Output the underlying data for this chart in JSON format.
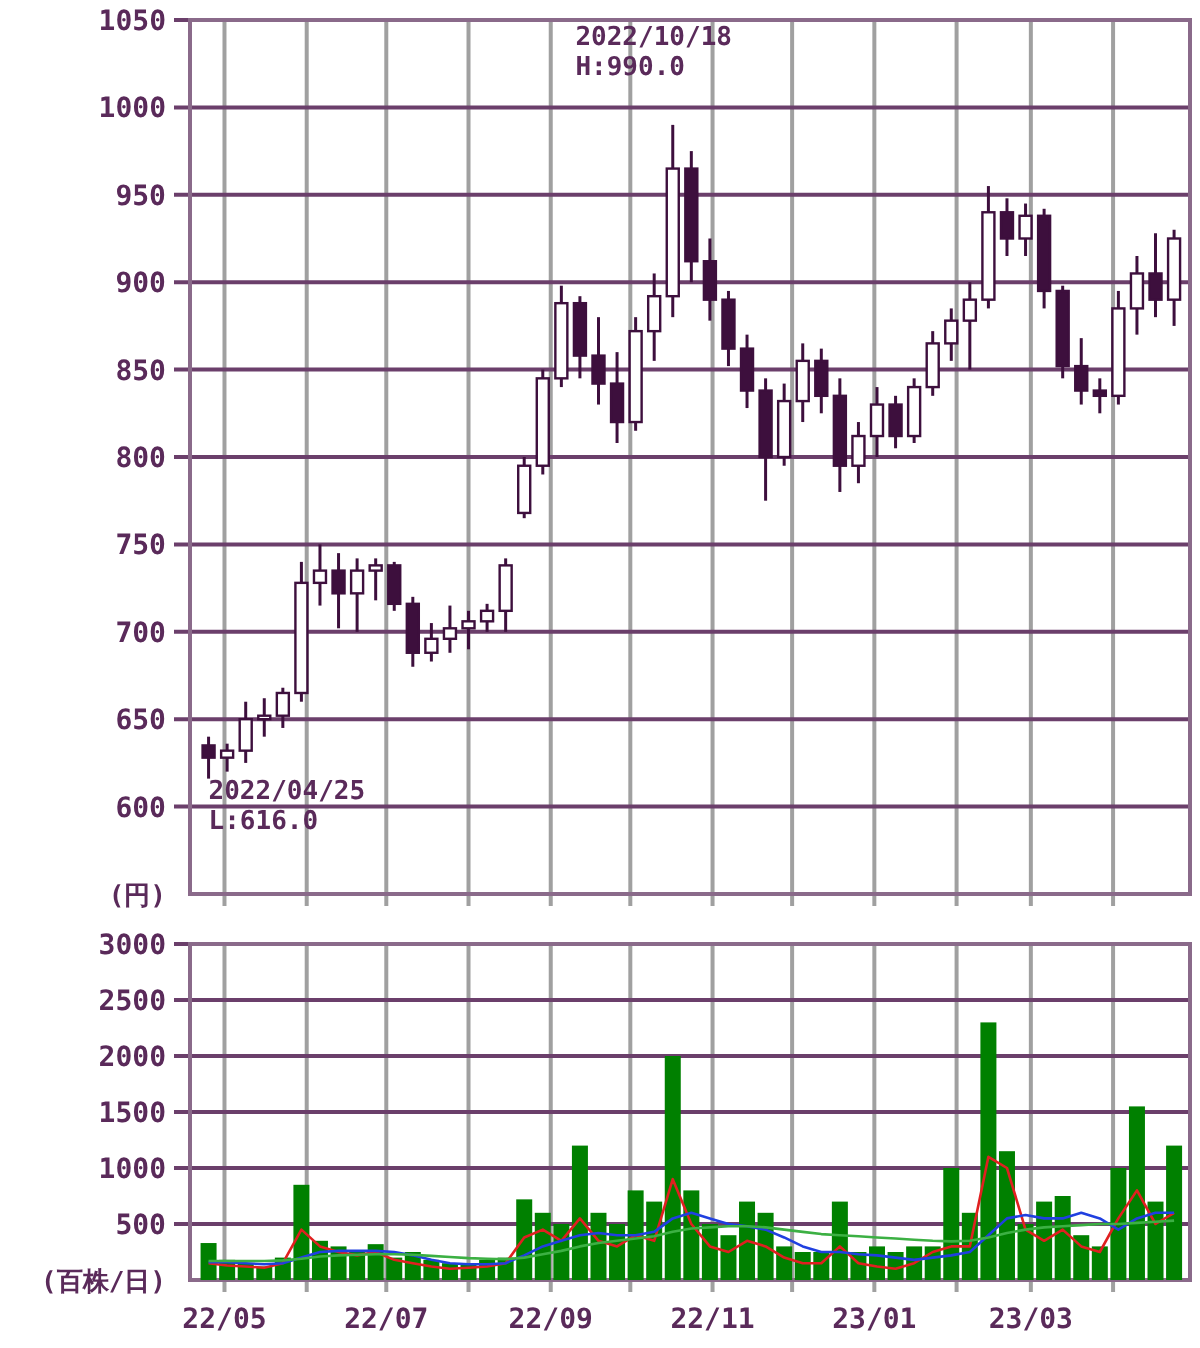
{
  "chart_data": [
    {
      "type": "candlestick",
      "ylabel": "(円)",
      "color": "#3d0f3d",
      "x": [
        "2022-04-25",
        "2022-05-02",
        "2022-05-09",
        "2022-05-16",
        "2022-05-23",
        "2022-05-30",
        "2022-06-06",
        "2022-06-13",
        "2022-06-20",
        "2022-06-27",
        "2022-07-04",
        "2022-07-11",
        "2022-07-18",
        "2022-07-25",
        "2022-08-01",
        "2022-08-08",
        "2022-08-15",
        "2022-08-22",
        "2022-08-29",
        "2022-09-05",
        "2022-09-12",
        "2022-09-19",
        "2022-09-26",
        "2022-10-03",
        "2022-10-10",
        "2022-10-17",
        "2022-10-24",
        "2022-10-31",
        "2022-11-07",
        "2022-11-14",
        "2022-11-21",
        "2022-11-28",
        "2022-12-05",
        "2022-12-12",
        "2022-12-19",
        "2022-12-26",
        "2023-01-02",
        "2023-01-09",
        "2023-01-16",
        "2023-01-23",
        "2023-01-30",
        "2023-02-06",
        "2023-02-13",
        "2023-02-20",
        "2023-02-27",
        "2023-03-06",
        "2023-03-13",
        "2023-03-20",
        "2023-03-27",
        "2023-04-03",
        "2023-04-10",
        "2023-04-17",
        "2023-04-24"
      ],
      "ohlc": [
        [
          635,
          640,
          616,
          628
        ],
        [
          628,
          636,
          620,
          632
        ],
        [
          632,
          660,
          625,
          650
        ],
        [
          650,
          662,
          640,
          652
        ],
        [
          652,
          668,
          645,
          665
        ],
        [
          665,
          740,
          660,
          728
        ],
        [
          728,
          750,
          715,
          735
        ],
        [
          735,
          745,
          702,
          722
        ],
        [
          722,
          742,
          700,
          735
        ],
        [
          735,
          742,
          718,
          738
        ],
        [
          738,
          740,
          712,
          716
        ],
        [
          716,
          720,
          680,
          688
        ],
        [
          688,
          705,
          683,
          696
        ],
        [
          696,
          715,
          688,
          702
        ],
        [
          702,
          712,
          690,
          706
        ],
        [
          706,
          716,
          700,
          712
        ],
        [
          712,
          742,
          700,
          738
        ],
        [
          768,
          800,
          765,
          795
        ],
        [
          795,
          850,
          790,
          845
        ],
        [
          845,
          898,
          840,
          888
        ],
        [
          888,
          892,
          845,
          858
        ],
        [
          858,
          880,
          830,
          842
        ],
        [
          842,
          860,
          808,
          820
        ],
        [
          820,
          880,
          815,
          872
        ],
        [
          872,
          905,
          855,
          892
        ],
        [
          892,
          990,
          880,
          965
        ],
        [
          965,
          975,
          900,
          912
        ],
        [
          912,
          925,
          878,
          890
        ],
        [
          890,
          895,
          852,
          862
        ],
        [
          862,
          870,
          828,
          838
        ],
        [
          838,
          845,
          775,
          800
        ],
        [
          800,
          842,
          795,
          832
        ],
        [
          832,
          865,
          820,
          855
        ],
        [
          855,
          862,
          825,
          835
        ],
        [
          835,
          845,
          780,
          795
        ],
        [
          795,
          820,
          785,
          812
        ],
        [
          812,
          840,
          800,
          830
        ],
        [
          830,
          835,
          805,
          812
        ],
        [
          812,
          845,
          808,
          840
        ],
        [
          840,
          872,
          835,
          865
        ],
        [
          865,
          885,
          855,
          878
        ],
        [
          878,
          900,
          850,
          890
        ],
        [
          890,
          955,
          885,
          940
        ],
        [
          940,
          948,
          915,
          925
        ],
        [
          925,
          945,
          915,
          938
        ],
        [
          938,
          942,
          885,
          895
        ],
        [
          895,
          898,
          845,
          852
        ],
        [
          852,
          868,
          830,
          838
        ],
        [
          838,
          845,
          825,
          835
        ],
        [
          835,
          895,
          830,
          885
        ],
        [
          885,
          915,
          870,
          905
        ],
        [
          905,
          928,
          880,
          890
        ],
        [
          890,
          930,
          875,
          925
        ]
      ],
      "xlim": [
        "2022-04-18",
        "2023-04-30"
      ],
      "xticks": [
        {
          "value": "2022-05-01",
          "label": null
        },
        {
          "value": "2022-06-01",
          "label": null
        },
        {
          "value": "2022-07-01",
          "label": null
        },
        {
          "value": "2022-08-01",
          "label": null
        },
        {
          "value": "2022-09-01",
          "label": null
        },
        {
          "value": "2022-10-01",
          "label": null
        },
        {
          "value": "2022-11-01",
          "label": null
        },
        {
          "value": "2022-12-01",
          "label": null
        },
        {
          "value": "2023-01-01",
          "label": null
        },
        {
          "value": "2023-02-01",
          "label": null
        },
        {
          "value": "2023-03-01",
          "label": null
        },
        {
          "value": "2023-04-01",
          "label": null
        }
      ],
      "ylim": [
        550,
        1050
      ],
      "yticks": [
        600,
        650,
        700,
        750,
        800,
        850,
        900,
        950,
        1000,
        1050
      ],
      "tick_labels": "y",
      "grid": true,
      "annotations": [
        {
          "text": "2022/10/18\nH:990.0",
          "x": "2022-10-18",
          "y": 990
        },
        {
          "text": "2022/04/25\nL:616.0",
          "x": "2022-04-25",
          "y": 616
        }
      ]
    },
    {
      "type": "bar",
      "ylabel": "(百株/日)",
      "x": [
        "2022-04-25",
        "2022-05-02",
        "2022-05-09",
        "2022-05-16",
        "2022-05-23",
        "2022-05-30",
        "2022-06-06",
        "2022-06-13",
        "2022-06-20",
        "2022-06-27",
        "2022-07-04",
        "2022-07-11",
        "2022-07-18",
        "2022-07-25",
        "2022-08-01",
        "2022-08-08",
        "2022-08-15",
        "2022-08-22",
        "2022-08-29",
        "2022-09-05",
        "2022-09-12",
        "2022-09-19",
        "2022-09-26",
        "2022-10-03",
        "2022-10-10",
        "2022-10-17",
        "2022-10-24",
        "2022-10-31",
        "2022-11-07",
        "2022-11-14",
        "2022-11-21",
        "2022-11-28",
        "2022-12-05",
        "2022-12-12",
        "2022-12-19",
        "2022-12-26",
        "2023-01-02",
        "2023-01-09",
        "2023-01-16",
        "2023-01-23",
        "2023-01-30",
        "2023-02-06",
        "2023-02-13",
        "2023-02-20",
        "2023-02-27",
        "2023-03-06",
        "2023-03-13",
        "2023-03-20",
        "2023-03-27",
        "2023-04-03",
        "2023-04-10",
        "2023-04-17",
        "2023-04-24"
      ],
      "series": [
        {
          "type": "bar",
          "color": "#008000",
          "values": [
            330,
            180,
            150,
            120,
            200,
            850,
            350,
            300,
            250,
            320,
            200,
            250,
            180,
            150,
            140,
            180,
            200,
            720,
            600,
            500,
            1200,
            600,
            500,
            800,
            700,
            2000,
            800,
            500,
            400,
            700,
            600,
            300,
            250,
            250,
            700,
            250,
            300,
            250,
            300,
            300,
            1000,
            600,
            2300,
            1150,
            500,
            700,
            750,
            400,
            300,
            1000,
            1550,
            700,
            1200
          ]
        },
        {
          "type": "line",
          "color": "#e02020",
          "values": [
            150,
            130,
            120,
            110,
            150,
            450,
            300,
            250,
            220,
            250,
            180,
            150,
            120,
            100,
            110,
            120,
            150,
            380,
            450,
            350,
            550,
            350,
            300,
            400,
            350,
            900,
            500,
            300,
            250,
            350,
            300,
            200,
            150,
            150,
            300,
            150,
            120,
            100,
            150,
            250,
            300,
            300,
            1100,
            1000,
            450,
            350,
            450,
            300,
            250,
            550,
            800,
            500,
            600
          ]
        },
        {
          "type": "line",
          "color": "#2040e0",
          "values": [
            160,
            160,
            150,
            140,
            150,
            200,
            250,
            260,
            260,
            260,
            250,
            220,
            180,
            150,
            140,
            140,
            150,
            220,
            300,
            350,
            400,
            420,
            400,
            400,
            430,
            550,
            600,
            550,
            500,
            480,
            450,
            380,
            300,
            250,
            250,
            230,
            220,
            200,
            180,
            200,
            220,
            250,
            400,
            550,
            580,
            550,
            550,
            600,
            550,
            450,
            550,
            600,
            600
          ]
        },
        {
          "type": "line",
          "color": "#3cb043",
          "values": [
            170,
            170,
            170,
            170,
            175,
            190,
            210,
            220,
            225,
            230,
            230,
            225,
            215,
            205,
            195,
            190,
            185,
            200,
            230,
            260,
            300,
            330,
            350,
            370,
            390,
            430,
            460,
            470,
            480,
            480,
            470,
            450,
            430,
            410,
            400,
            390,
            380,
            370,
            360,
            350,
            345,
            350,
            380,
            420,
            450,
            470,
            480,
            490,
            500,
            500,
            510,
            520,
            530
          ]
        }
      ],
      "xlim": [
        "2022-04-18",
        "2023-04-30"
      ],
      "xticks": [
        {
          "value": "2022-05-01",
          "label": "22/05"
        },
        {
          "value": "2022-06-01",
          "label": null
        },
        {
          "value": "2022-07-01",
          "label": "22/07"
        },
        {
          "value": "2022-08-01",
          "label": null
        },
        {
          "value": "2022-09-01",
          "label": "22/09"
        },
        {
          "value": "2022-10-01",
          "label": null
        },
        {
          "value": "2022-11-01",
          "label": "22/11"
        },
        {
          "value": "2022-12-01",
          "label": null
        },
        {
          "value": "2023-01-01",
          "label": "23/01"
        },
        {
          "value": "2023-02-01",
          "label": null
        },
        {
          "value": "2023-03-01",
          "label": "23/03"
        },
        {
          "value": "2023-04-01",
          "label": null
        }
      ],
      "ylim": [
        0,
        3000
      ],
      "yticks": [
        500,
        1000,
        1500,
        2000,
        2500,
        3000
      ],
      "grid": true
    }
  ]
}
